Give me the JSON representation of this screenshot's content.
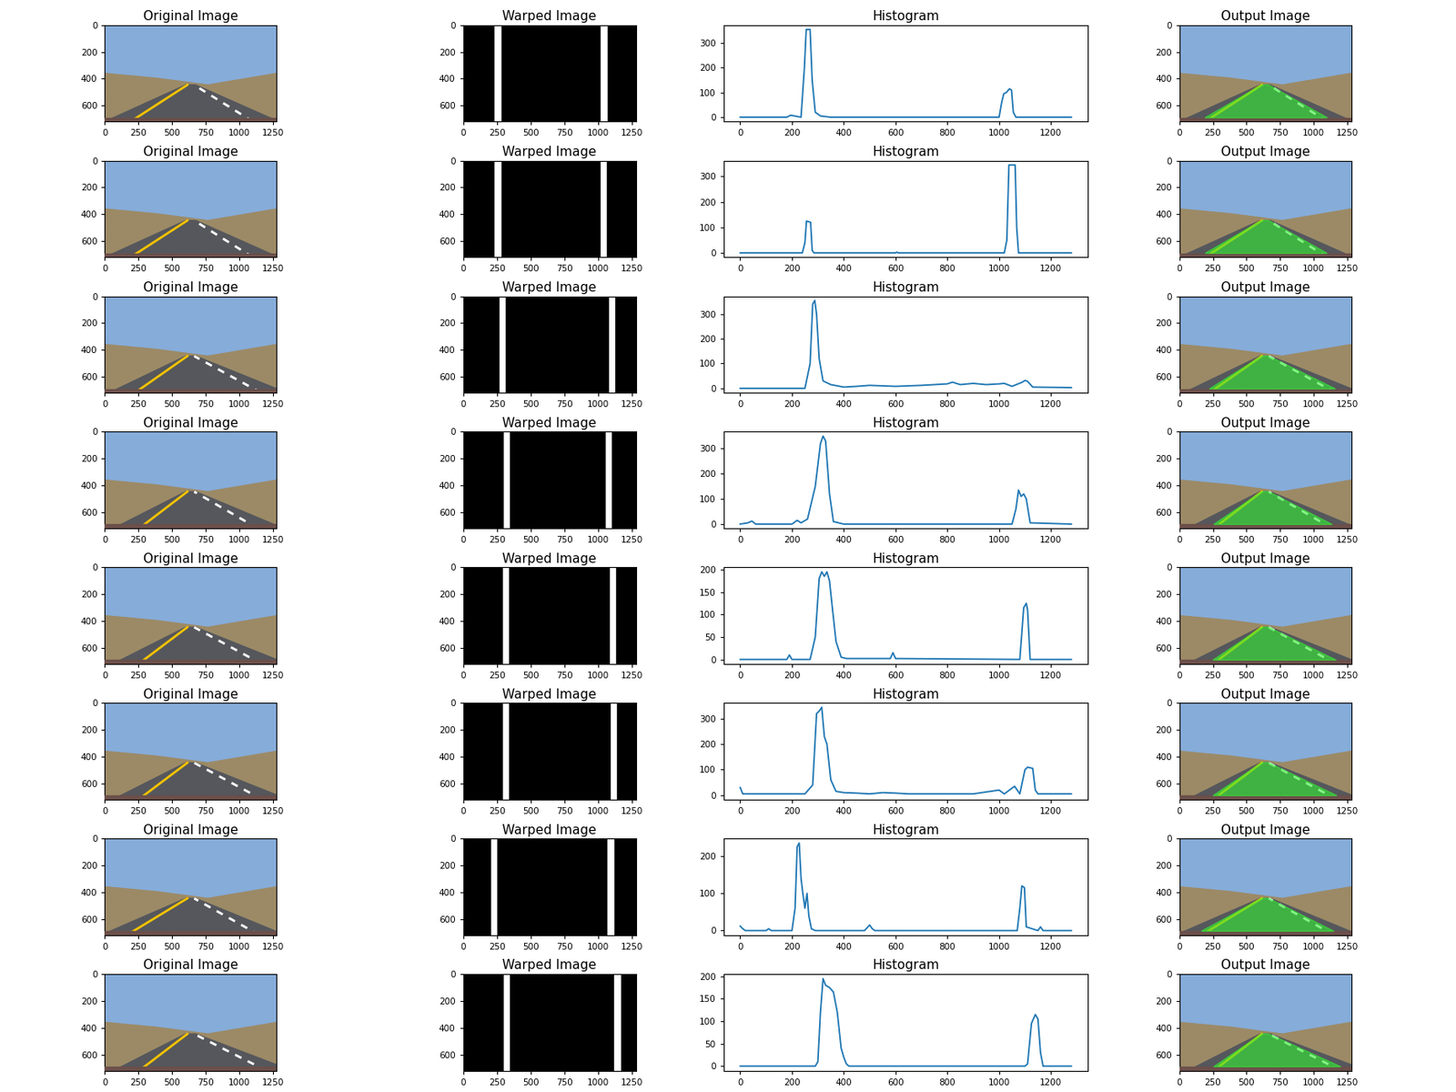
{
  "chart_data": [
    {
      "type": "photo",
      "title": "Original Image",
      "xlim": [
        0,
        1280
      ],
      "ylim": [
        720,
        0
      ],
      "xticks": [
        0,
        250,
        500,
        750,
        1000,
        1250
      ],
      "yticks": [
        0,
        200,
        400,
        600
      ]
    },
    {
      "type": "binary_image",
      "title": "Warped Image",
      "xlim": [
        0,
        1280
      ],
      "ylim": [
        720,
        0
      ],
      "xticks": [
        0,
        250,
        500,
        750,
        1000,
        1250
      ],
      "yticks": [
        0,
        200,
        400,
        600
      ]
    },
    {
      "type": "line",
      "title": "Histogram",
      "color": "#1f77b4",
      "xlim": [
        -64,
        1342
      ],
      "ylim": [
        -18,
        373
      ],
      "xticks": [
        0,
        200,
        400,
        600,
        800,
        1000,
        1200
      ],
      "yticks": [
        0,
        100,
        200,
        300
      ],
      "x": [
        0,
        180,
        195,
        210,
        235,
        248,
        255,
        270,
        278,
        290,
        310,
        350,
        1000,
        1010,
        1018,
        1028,
        1040,
        1048,
        1055,
        1065,
        1279
      ],
      "values": [
        0,
        0,
        8,
        5,
        0,
        200,
        355,
        355,
        150,
        20,
        5,
        0,
        0,
        60,
        95,
        100,
        115,
        110,
        20,
        0,
        0
      ]
    },
    {
      "type": "overlay_image",
      "title": "Output Image",
      "xlim": [
        0,
        1280
      ],
      "ylim": [
        720,
        0
      ],
      "xticks": [
        0,
        250,
        500,
        750,
        1000,
        1250
      ],
      "yticks": [
        0,
        200,
        400,
        600
      ]
    },
    {
      "type": "photo",
      "title": "Original Image",
      "xlim": [
        0,
        1280
      ],
      "ylim": [
        720,
        0
      ],
      "xticks": [
        0,
        250,
        500,
        750,
        1000,
        1250
      ],
      "yticks": [
        0,
        200,
        400,
        600
      ]
    },
    {
      "type": "binary_image",
      "title": "Warped Image",
      "xlim": [
        0,
        1280
      ],
      "ylim": [
        720,
        0
      ],
      "xticks": [
        0,
        250,
        500,
        750,
        1000,
        1250
      ],
      "yticks": [
        0,
        200,
        400,
        600
      ]
    },
    {
      "type": "line",
      "title": "Histogram",
      "color": "#1f77b4",
      "xlim": [
        -64,
        1342
      ],
      "ylim": [
        -17,
        362
      ],
      "xticks": [
        0,
        200,
        400,
        600,
        800,
        1000,
        1200
      ],
      "yticks": [
        0,
        100,
        200,
        300
      ],
      "x": [
        0,
        240,
        250,
        256,
        272,
        278,
        285,
        600,
        605,
        610,
        1020,
        1030,
        1038,
        1062,
        1068,
        1075,
        1279
      ],
      "values": [
        0,
        0,
        40,
        125,
        120,
        10,
        0,
        0,
        3,
        0,
        0,
        50,
        345,
        345,
        100,
        0,
        0
      ]
    },
    {
      "type": "overlay_image",
      "title": "Output Image",
      "xlim": [
        0,
        1280
      ],
      "ylim": [
        720,
        0
      ],
      "xticks": [
        0,
        250,
        500,
        750,
        1000,
        1250
      ],
      "yticks": [
        0,
        200,
        400,
        600
      ]
    },
    {
      "type": "photo",
      "title": "Original Image",
      "xlim": [
        0,
        1280
      ],
      "ylim": [
        720,
        0
      ],
      "xticks": [
        0,
        250,
        500,
        750,
        1000,
        1250
      ],
      "yticks": [
        0,
        200,
        400,
        600
      ]
    },
    {
      "type": "binary_image",
      "title": "Warped Image",
      "xlim": [
        0,
        1280
      ],
      "ylim": [
        720,
        0
      ],
      "xticks": [
        0,
        250,
        500,
        750,
        1000,
        1250
      ],
      "yticks": [
        0,
        200,
        400,
        600
      ]
    },
    {
      "type": "line",
      "title": "Histogram",
      "color": "#1f77b4",
      "xlim": [
        -64,
        1342
      ],
      "ylim": [
        -18,
        372
      ],
      "xticks": [
        0,
        200,
        400,
        600,
        800,
        1000,
        1200
      ],
      "yticks": [
        0,
        100,
        200,
        300
      ],
      "x": [
        0,
        250,
        270,
        280,
        288,
        295,
        305,
        320,
        350,
        400,
        450,
        500,
        550,
        600,
        650,
        700,
        750,
        800,
        820,
        850,
        900,
        950,
        1000,
        1020,
        1050,
        1090,
        1100,
        1110,
        1130,
        1279
      ],
      "values": [
        0,
        0,
        100,
        340,
        355,
        300,
        120,
        30,
        15,
        5,
        8,
        12,
        10,
        8,
        10,
        12,
        15,
        18,
        25,
        15,
        20,
        15,
        18,
        20,
        8,
        25,
        32,
        28,
        5,
        3
      ]
    },
    {
      "type": "overlay_image",
      "title": "Output Image",
      "xlim": [
        0,
        1280
      ],
      "ylim": [
        720,
        0
      ],
      "xticks": [
        0,
        250,
        500,
        750,
        1000,
        1250
      ],
      "yticks": [
        0,
        200,
        400,
        600
      ]
    },
    {
      "type": "photo",
      "title": "Original Image",
      "xlim": [
        0,
        1280
      ],
      "ylim": [
        720,
        0
      ],
      "xticks": [
        0,
        250,
        500,
        750,
        1000,
        1250
      ],
      "yticks": [
        0,
        200,
        400,
        600
      ]
    },
    {
      "type": "binary_image",
      "title": "Warped Image",
      "xlim": [
        0,
        1280
      ],
      "ylim": [
        720,
        0
      ],
      "xticks": [
        0,
        250,
        500,
        750,
        1000,
        1250
      ],
      "yticks": [
        0,
        200,
        400,
        600
      ]
    },
    {
      "type": "line",
      "title": "Histogram",
      "color": "#1f77b4",
      "xlim": [
        -64,
        1342
      ],
      "ylim": [
        -17,
        367
      ],
      "xticks": [
        0,
        200,
        400,
        600,
        800,
        1000,
        1200
      ],
      "yticks": [
        0,
        100,
        200,
        300
      ],
      "x": [
        0,
        30,
        45,
        60,
        200,
        220,
        235,
        260,
        290,
        310,
        320,
        330,
        345,
        360,
        400,
        1050,
        1065,
        1075,
        1085,
        1095,
        1105,
        1120,
        1279
      ],
      "values": [
        0,
        5,
        12,
        0,
        0,
        15,
        5,
        20,
        150,
        320,
        350,
        330,
        120,
        10,
        0,
        0,
        60,
        135,
        110,
        120,
        100,
        5,
        0
      ]
    },
    {
      "type": "overlay_image",
      "title": "Output Image",
      "xlim": [
        0,
        1280
      ],
      "ylim": [
        720,
        0
      ],
      "xticks": [
        0,
        250,
        500,
        750,
        1000,
        1250
      ],
      "yticks": [
        0,
        200,
        400,
        600
      ]
    },
    {
      "type": "photo",
      "title": "Original Image",
      "xlim": [
        0,
        1280
      ],
      "ylim": [
        720,
        0
      ],
      "xticks": [
        0,
        250,
        500,
        750,
        1000,
        1250
      ],
      "yticks": [
        0,
        200,
        400,
        600
      ]
    },
    {
      "type": "binary_image",
      "title": "Warped Image",
      "xlim": [
        0,
        1280
      ],
      "ylim": [
        720,
        0
      ],
      "xticks": [
        0,
        250,
        500,
        750,
        1000,
        1250
      ],
      "yticks": [
        0,
        200,
        400,
        600
      ]
    },
    {
      "type": "line",
      "title": "Histogram",
      "color": "#1f77b4",
      "xlim": [
        -64,
        1342
      ],
      "ylim": [
        -10,
        205
      ],
      "xticks": [
        0,
        200,
        400,
        600,
        800,
        1000,
        1200
      ],
      "yticks": [
        0,
        50,
        100,
        150,
        200
      ],
      "x": [
        0,
        180,
        190,
        200,
        270,
        290,
        305,
        315,
        325,
        335,
        345,
        355,
        370,
        390,
        410,
        580,
        590,
        600,
        1080,
        1088,
        1095,
        1105,
        1110,
        1120,
        1279
      ],
      "values": [
        0,
        0,
        10,
        0,
        0,
        50,
        180,
        195,
        185,
        195,
        175,
        120,
        40,
        5,
        2,
        2,
        15,
        2,
        0,
        60,
        115,
        125,
        110,
        0,
        0
      ]
    },
    {
      "type": "overlay_image",
      "title": "Output Image",
      "xlim": [
        0,
        1280
      ],
      "ylim": [
        720,
        0
      ],
      "xticks": [
        0,
        250,
        500,
        750,
        1000,
        1250
      ],
      "yticks": [
        0,
        200,
        400,
        600
      ]
    },
    {
      "type": "photo",
      "title": "Original Image",
      "xlim": [
        0,
        1280
      ],
      "ylim": [
        720,
        0
      ],
      "xticks": [
        0,
        250,
        500,
        750,
        1000,
        1250
      ],
      "yticks": [
        0,
        200,
        400,
        600
      ]
    },
    {
      "type": "binary_image",
      "title": "Warped Image",
      "xlim": [
        0,
        1280
      ],
      "ylim": [
        720,
        0
      ],
      "xticks": [
        0,
        250,
        500,
        750,
        1000,
        1250
      ],
      "yticks": [
        0,
        200,
        400,
        600
      ]
    },
    {
      "type": "line",
      "title": "Histogram",
      "color": "#1f77b4",
      "xlim": [
        -64,
        1342
      ],
      "ylim": [
        -17,
        362
      ],
      "xticks": [
        0,
        200,
        400,
        600,
        800,
        1000,
        1200
      ],
      "yticks": [
        0,
        100,
        200,
        300
      ],
      "x": [
        0,
        10,
        50,
        150,
        200,
        250,
        280,
        295,
        305,
        315,
        325,
        335,
        350,
        370,
        400,
        450,
        500,
        550,
        600,
        650,
        700,
        800,
        900,
        1000,
        1020,
        1060,
        1080,
        1100,
        1110,
        1130,
        1140,
        1150,
        1200,
        1279
      ],
      "values": [
        30,
        5,
        5,
        5,
        5,
        5,
        40,
        320,
        330,
        345,
        230,
        200,
        60,
        15,
        10,
        8,
        5,
        10,
        8,
        5,
        5,
        5,
        5,
        20,
        5,
        35,
        5,
        100,
        110,
        105,
        20,
        5,
        5,
        5
      ]
    },
    {
      "type": "overlay_image",
      "title": "Output Image",
      "xlim": [
        0,
        1280
      ],
      "ylim": [
        720,
        0
      ],
      "xticks": [
        0,
        250,
        500,
        750,
        1000,
        1250
      ],
      "yticks": [
        0,
        200,
        400,
        600
      ]
    },
    {
      "type": "photo",
      "title": "Original Image",
      "xlim": [
        0,
        1280
      ],
      "ylim": [
        720,
        0
      ],
      "xticks": [
        0,
        250,
        500,
        750,
        1000,
        1250
      ],
      "yticks": [
        0,
        200,
        400,
        600
      ]
    },
    {
      "type": "binary_image",
      "title": "Warped Image",
      "xlim": [
        0,
        1280
      ],
      "ylim": [
        720,
        0
      ],
      "xticks": [
        0,
        250,
        500,
        750,
        1000,
        1250
      ],
      "yticks": [
        0,
        200,
        400,
        600
      ]
    },
    {
      "type": "line",
      "title": "Histogram",
      "color": "#1f77b4",
      "xlim": [
        -64,
        1342
      ],
      "ylim": [
        -12,
        247
      ],
      "xticks": [
        0,
        200,
        400,
        600,
        800,
        1000,
        1200
      ],
      "yticks": [
        0,
        100,
        200
      ],
      "x": [
        0,
        10,
        20,
        100,
        110,
        120,
        200,
        212,
        220,
        228,
        235,
        242,
        250,
        258,
        265,
        275,
        290,
        480,
        500,
        510,
        520,
        1070,
        1080,
        1088,
        1098,
        1105,
        1150,
        1160,
        1170,
        1279
      ],
      "values": [
        12,
        5,
        0,
        0,
        5,
        0,
        0,
        60,
        225,
        235,
        140,
        100,
        60,
        100,
        40,
        5,
        0,
        0,
        15,
        5,
        0,
        0,
        60,
        120,
        115,
        10,
        0,
        10,
        0,
        0
      ]
    },
    {
      "type": "overlay_image",
      "title": "Output Image",
      "xlim": [
        0,
        1280
      ],
      "ylim": [
        720,
        0
      ],
      "xticks": [
        0,
        250,
        500,
        750,
        1000,
        1250
      ],
      "yticks": [
        0,
        200,
        400,
        600
      ]
    },
    {
      "type": "photo",
      "title": "Original Image",
      "xlim": [
        0,
        1280
      ],
      "ylim": [
        720,
        0
      ],
      "xticks": [
        0,
        250,
        500,
        750,
        1000,
        1250
      ],
      "yticks": [
        0,
        200,
        400,
        600
      ]
    },
    {
      "type": "binary_image",
      "title": "Warped Image",
      "xlim": [
        0,
        1280
      ],
      "ylim": [
        720,
        0
      ],
      "xticks": [
        0,
        250,
        500,
        750,
        1000,
        1250
      ],
      "yticks": [
        0,
        200,
        400,
        600
      ]
    },
    {
      "type": "line",
      "title": "Histogram",
      "color": "#1f77b4",
      "xlim": [
        -64,
        1342
      ],
      "ylim": [
        -10,
        205
      ],
      "xticks": [
        0,
        200,
        400,
        600,
        800,
        1000,
        1200
      ],
      "yticks": [
        0,
        50,
        100,
        150,
        200
      ],
      "x": [
        0,
        290,
        300,
        310,
        320,
        330,
        345,
        360,
        375,
        390,
        400,
        410,
        420,
        1000,
        1100,
        1110,
        1125,
        1140,
        1150,
        1160,
        1170,
        1279
      ],
      "values": [
        0,
        0,
        10,
        120,
        195,
        180,
        175,
        165,
        120,
        40,
        20,
        5,
        0,
        0,
        0,
        5,
        95,
        115,
        105,
        30,
        0,
        0
      ]
    },
    {
      "type": "overlay_image",
      "title": "Output Image",
      "xlim": [
        0,
        1280
      ],
      "ylim": [
        720,
        0
      ],
      "xticks": [
        0,
        250,
        500,
        750,
        1000,
        1250
      ],
      "yticks": [
        0,
        200,
        400,
        600
      ]
    }
  ]
}
